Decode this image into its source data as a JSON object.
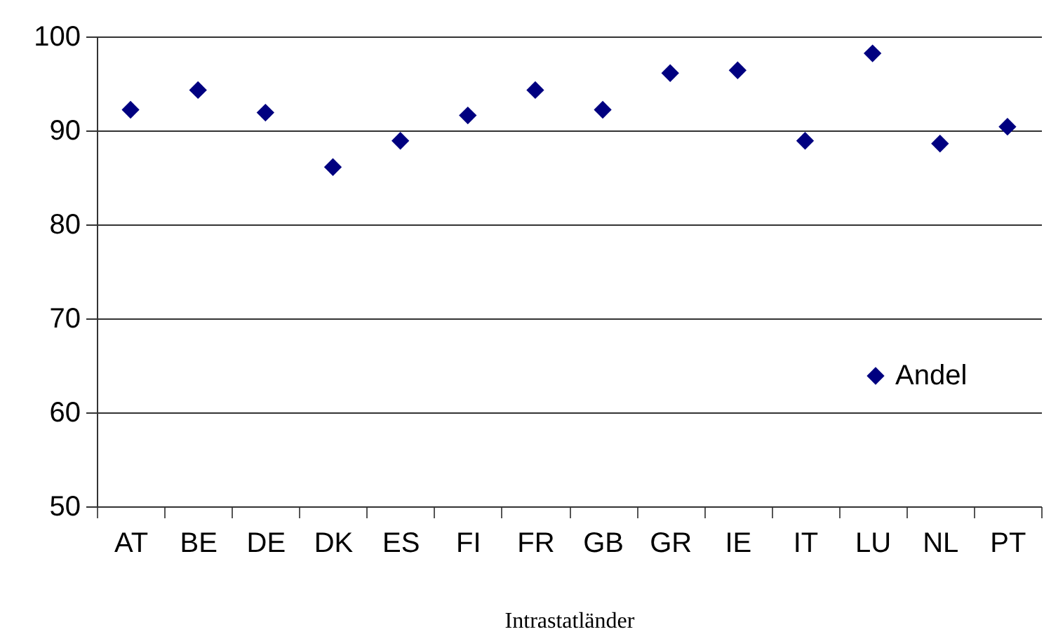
{
  "chart_data": {
    "type": "scatter",
    "xlabel": "Intrastatländer",
    "categories": [
      "AT",
      "BE",
      "DE",
      "DK",
      "ES",
      "FI",
      "FR",
      "GB",
      "GR",
      "IE",
      "IT",
      "LU",
      "NL",
      "PT"
    ],
    "series": [
      {
        "name": "Andel",
        "color": "#000080",
        "values": [
          92.2,
          94.3,
          91.9,
          86.1,
          88.9,
          91.6,
          94.3,
          92.2,
          96.1,
          96.4,
          88.9,
          98.2,
          88.6,
          90.4
        ]
      }
    ],
    "ylim": [
      50,
      100
    ],
    "yticks": [
      50,
      60,
      70,
      80,
      90,
      100
    ],
    "grid": "y",
    "legend": "bottom right",
    "marker": "diamond"
  }
}
